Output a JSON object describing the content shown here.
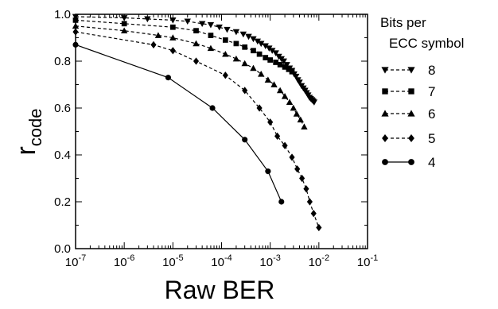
{
  "chart_data": {
    "type": "line",
    "xlabel": "Raw BER",
    "ylabel": "r",
    "ylabel_subscript": "code",
    "xscale": "log",
    "xlim": [
      1e-07,
      0.1
    ],
    "ylim": [
      0.0,
      1.0
    ],
    "x_ticks": [
      {
        "value": 1e-07,
        "base": "10",
        "exp": "-7"
      },
      {
        "value": 1e-06,
        "base": "10",
        "exp": "-6"
      },
      {
        "value": 1e-05,
        "base": "10",
        "exp": "-5"
      },
      {
        "value": 0.0001,
        "base": "10",
        "exp": "-4"
      },
      {
        "value": 0.001,
        "base": "10",
        "exp": "-3"
      },
      {
        "value": 0.01,
        "base": "10",
        "exp": "-2"
      },
      {
        "value": 0.1,
        "base": "10",
        "exp": "-1"
      }
    ],
    "y_ticks": [
      "0.0",
      "0.2",
      "0.4",
      "0.6",
      "0.8",
      "1.0"
    ],
    "grid": false,
    "legend": {
      "title_line1": "Bits per",
      "title_line2": "ECC symbol",
      "position": "right"
    },
    "series": [
      {
        "name": "8",
        "marker": "triangle-down",
        "line": "dashed",
        "x": [
          1e-07,
          1e-06,
          3e-06,
          1e-05,
          2e-05,
          4e-05,
          6e-05,
          9e-05,
          0.00013,
          0.0002,
          0.00028,
          0.00036,
          0.00045,
          0.00055,
          0.00065,
          0.0008,
          0.00095,
          0.0011,
          0.0013,
          0.0015,
          0.0017,
          0.0019,
          0.0022,
          0.0025,
          0.0028,
          0.0031,
          0.0034,
          0.0037,
          0.004,
          0.0044,
          0.0048,
          0.0052,
          0.0056,
          0.006,
          0.0064,
          0.0068,
          0.0072,
          0.0076,
          0.008
        ],
        "y": [
          0.99,
          0.985,
          0.98,
          0.975,
          0.97,
          0.96,
          0.955,
          0.945,
          0.935,
          0.925,
          0.915,
          0.905,
          0.895,
          0.885,
          0.875,
          0.865,
          0.855,
          0.845,
          0.835,
          0.82,
          0.81,
          0.8,
          0.785,
          0.77,
          0.76,
          0.745,
          0.735,
          0.72,
          0.71,
          0.695,
          0.685,
          0.675,
          0.665,
          0.655,
          0.645,
          0.64,
          0.635,
          0.63,
          0.625
        ]
      },
      {
        "name": "7",
        "marker": "square",
        "line": "dashed",
        "x": [
          1e-07,
          1e-06,
          1e-05,
          3e-05,
          6e-05,
          0.00012,
          0.0002,
          0.0003,
          0.00045,
          0.0006,
          0.0008,
          0.001,
          0.0013,
          0.0016,
          0.002,
          0.0024,
          0.0028
        ],
        "y": [
          0.975,
          0.96,
          0.945,
          0.93,
          0.91,
          0.89,
          0.875,
          0.86,
          0.845,
          0.83,
          0.815,
          0.805,
          0.795,
          0.785,
          0.775,
          0.765,
          0.755
        ]
      },
      {
        "name": "6",
        "marker": "triangle-up",
        "line": "dashed",
        "x": [
          1e-07,
          1e-06,
          5e-06,
          1e-05,
          3e-05,
          6e-05,
          0.00012,
          0.0002,
          0.0003,
          0.00045,
          0.00065,
          0.0009,
          0.0012,
          0.0016,
          0.002,
          0.0025,
          0.003,
          0.0035,
          0.0042,
          0.005
        ],
        "y": [
          0.95,
          0.93,
          0.91,
          0.9,
          0.875,
          0.855,
          0.83,
          0.81,
          0.79,
          0.77,
          0.745,
          0.72,
          0.7,
          0.675,
          0.65,
          0.625,
          0.6,
          0.575,
          0.55,
          0.52
        ]
      },
      {
        "name": "5",
        "marker": "diamond",
        "line": "dashed",
        "x": [
          1e-07,
          4e-06,
          1e-05,
          3e-05,
          0.00012,
          0.0003,
          0.0006,
          0.001,
          0.0014,
          0.002,
          0.0028,
          0.0036,
          0.0045,
          0.0055,
          0.0065,
          0.0078,
          0.01
        ],
        "y": [
          0.925,
          0.87,
          0.845,
          0.8,
          0.74,
          0.675,
          0.6,
          0.54,
          0.48,
          0.44,
          0.39,
          0.34,
          0.3,
          0.255,
          0.2,
          0.15,
          0.09
        ]
      },
      {
        "name": "4",
        "marker": "circle",
        "line": "solid",
        "x": [
          1e-07,
          8e-06,
          6.5e-05,
          0.0003,
          0.0009,
          0.0017
        ],
        "y": [
          0.87,
          0.73,
          0.6,
          0.465,
          0.33,
          0.2
        ]
      }
    ]
  }
}
